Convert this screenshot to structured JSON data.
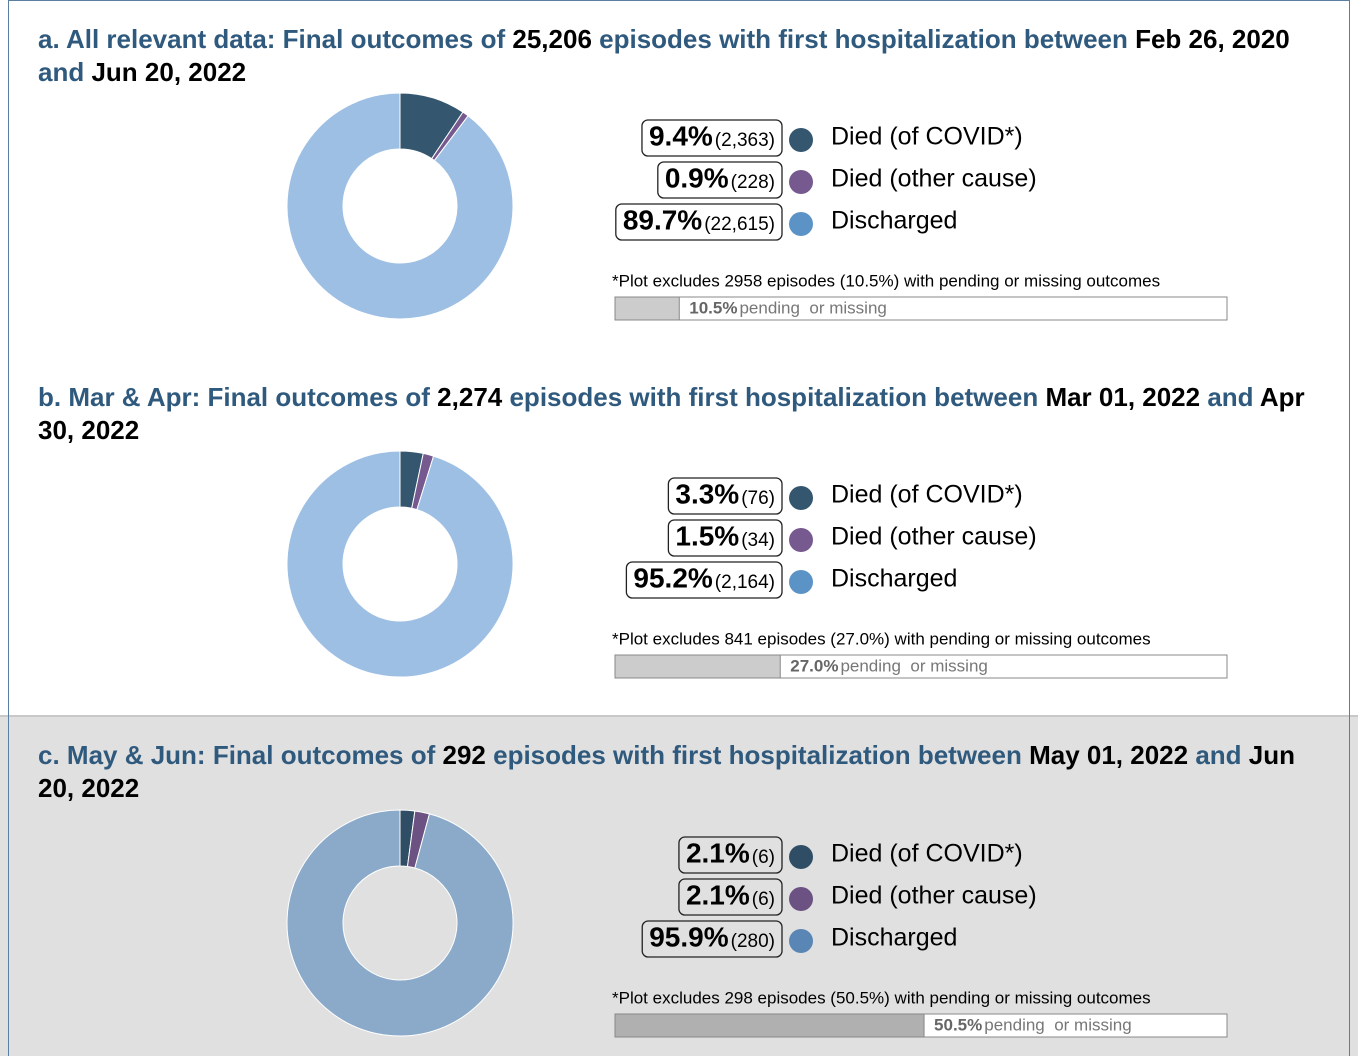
{
  "chart_data": [
    {
      "type": "pie",
      "title_parts": [
        "a. All relevant data: Final outcomes of ",
        "25,206",
        " episodes with first hospitalization between ",
        "Feb 26, 2020",
        " and ",
        "Jun 20, 2022"
      ],
      "categories": [
        "Died (of COVID*)",
        "Died (other cause)",
        "Discharged"
      ],
      "values": [
        9.4,
        0.9,
        89.7
      ],
      "value_labels": [
        "9.4%",
        "0.9%",
        "89.7%"
      ],
      "counts": [
        2363,
        228,
        22615
      ],
      "count_labels": [
        "(2,363)",
        "(228)",
        "(22,615)"
      ],
      "colors": [
        "#34566f",
        "#76598f",
        "#9dbfe4"
      ],
      "legend_colors": [
        "#34566f",
        "#76598f",
        "#5b93c6"
      ],
      "note": "*Plot excludes 2958 episodes (10.5%) with pending or missing outcomes",
      "pending": {
        "value": 10.5,
        "label": "10.5%",
        "text": "pending  or missing"
      },
      "background": "#ffffff",
      "pending_color": "#cccccc"
    },
    {
      "type": "pie",
      "title_parts": [
        "b. Mar & Apr: Final outcomes of ",
        "2,274",
        " episodes with first hospitalization between ",
        "Mar 01, 2022",
        " and ",
        "Apr 30, 2022"
      ],
      "categories": [
        "Died (of COVID*)",
        "Died (other cause)",
        "Discharged"
      ],
      "values": [
        3.3,
        1.5,
        95.2
      ],
      "value_labels": [
        "3.3%",
        "1.5%",
        "95.2%"
      ],
      "counts": [
        76,
        34,
        2164
      ],
      "count_labels": [
        "(76)",
        "(34)",
        "(2,164)"
      ],
      "colors": [
        "#34566f",
        "#76598f",
        "#9dbfe4"
      ],
      "legend_colors": [
        "#34566f",
        "#76598f",
        "#5b93c6"
      ],
      "note": "*Plot excludes 841 episodes (27.0%) with pending or missing outcomes",
      "pending": {
        "value": 27.0,
        "label": "27.0%",
        "text": "pending  or missing"
      },
      "background": "#ffffff",
      "pending_color": "#cccccc"
    },
    {
      "type": "pie",
      "title_parts": [
        "c. May & Jun: Final outcomes of ",
        "292",
        " episodes with first hospitalization between ",
        "May 01, 2022",
        " and ",
        "Jun 20, 2022"
      ],
      "categories": [
        "Died (of COVID*)",
        "Died (other cause)",
        "Discharged"
      ],
      "values": [
        2.1,
        2.1,
        95.9
      ],
      "value_labels": [
        "2.1%",
        "2.1%",
        "95.9%"
      ],
      "counts": [
        6,
        6,
        280
      ],
      "count_labels": [
        "(6)",
        "(6)",
        "(280)"
      ],
      "colors": [
        "#2f4e66",
        "#6b5282",
        "#8baac9"
      ],
      "legend_colors": [
        "#2f4e66",
        "#6b5282",
        "#5a86b5"
      ],
      "note": "*Plot excludes 298 episodes (50.5%) with pending or missing outcomes",
      "pending": {
        "value": 50.5,
        "label": "50.5%",
        "text": "pending  or missing"
      },
      "background": "#e0e0e0",
      "pending_color": "#b0b0b0"
    }
  ]
}
